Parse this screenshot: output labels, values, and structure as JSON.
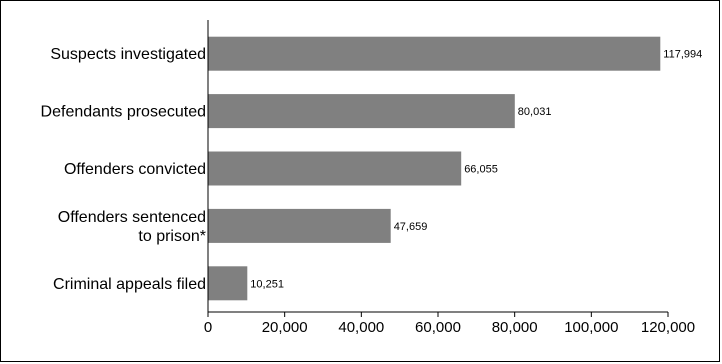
{
  "chart_data": {
    "type": "bar",
    "orientation": "horizontal",
    "categories": [
      "Suspects investigated",
      "Defendants prosecuted",
      "Offenders convicted",
      "Offenders sentenced\nto prison*",
      "Criminal appeals filed"
    ],
    "values": [
      117994,
      80031,
      66055,
      47659,
      10251
    ],
    "value_labels": [
      "117,994",
      "80,031",
      "66,055",
      "47,659",
      "10,251"
    ],
    "xlim": [
      0,
      120000
    ],
    "xticks": [
      0,
      20000,
      40000,
      60000,
      80000,
      100000,
      120000
    ],
    "xtick_labels": [
      "0",
      "20,000",
      "40,000",
      "60,000",
      "80,000",
      "100,000",
      "120,000"
    ],
    "bar_color": "#808080",
    "grid": false,
    "title": "",
    "xlabel": "",
    "ylabel": ""
  }
}
